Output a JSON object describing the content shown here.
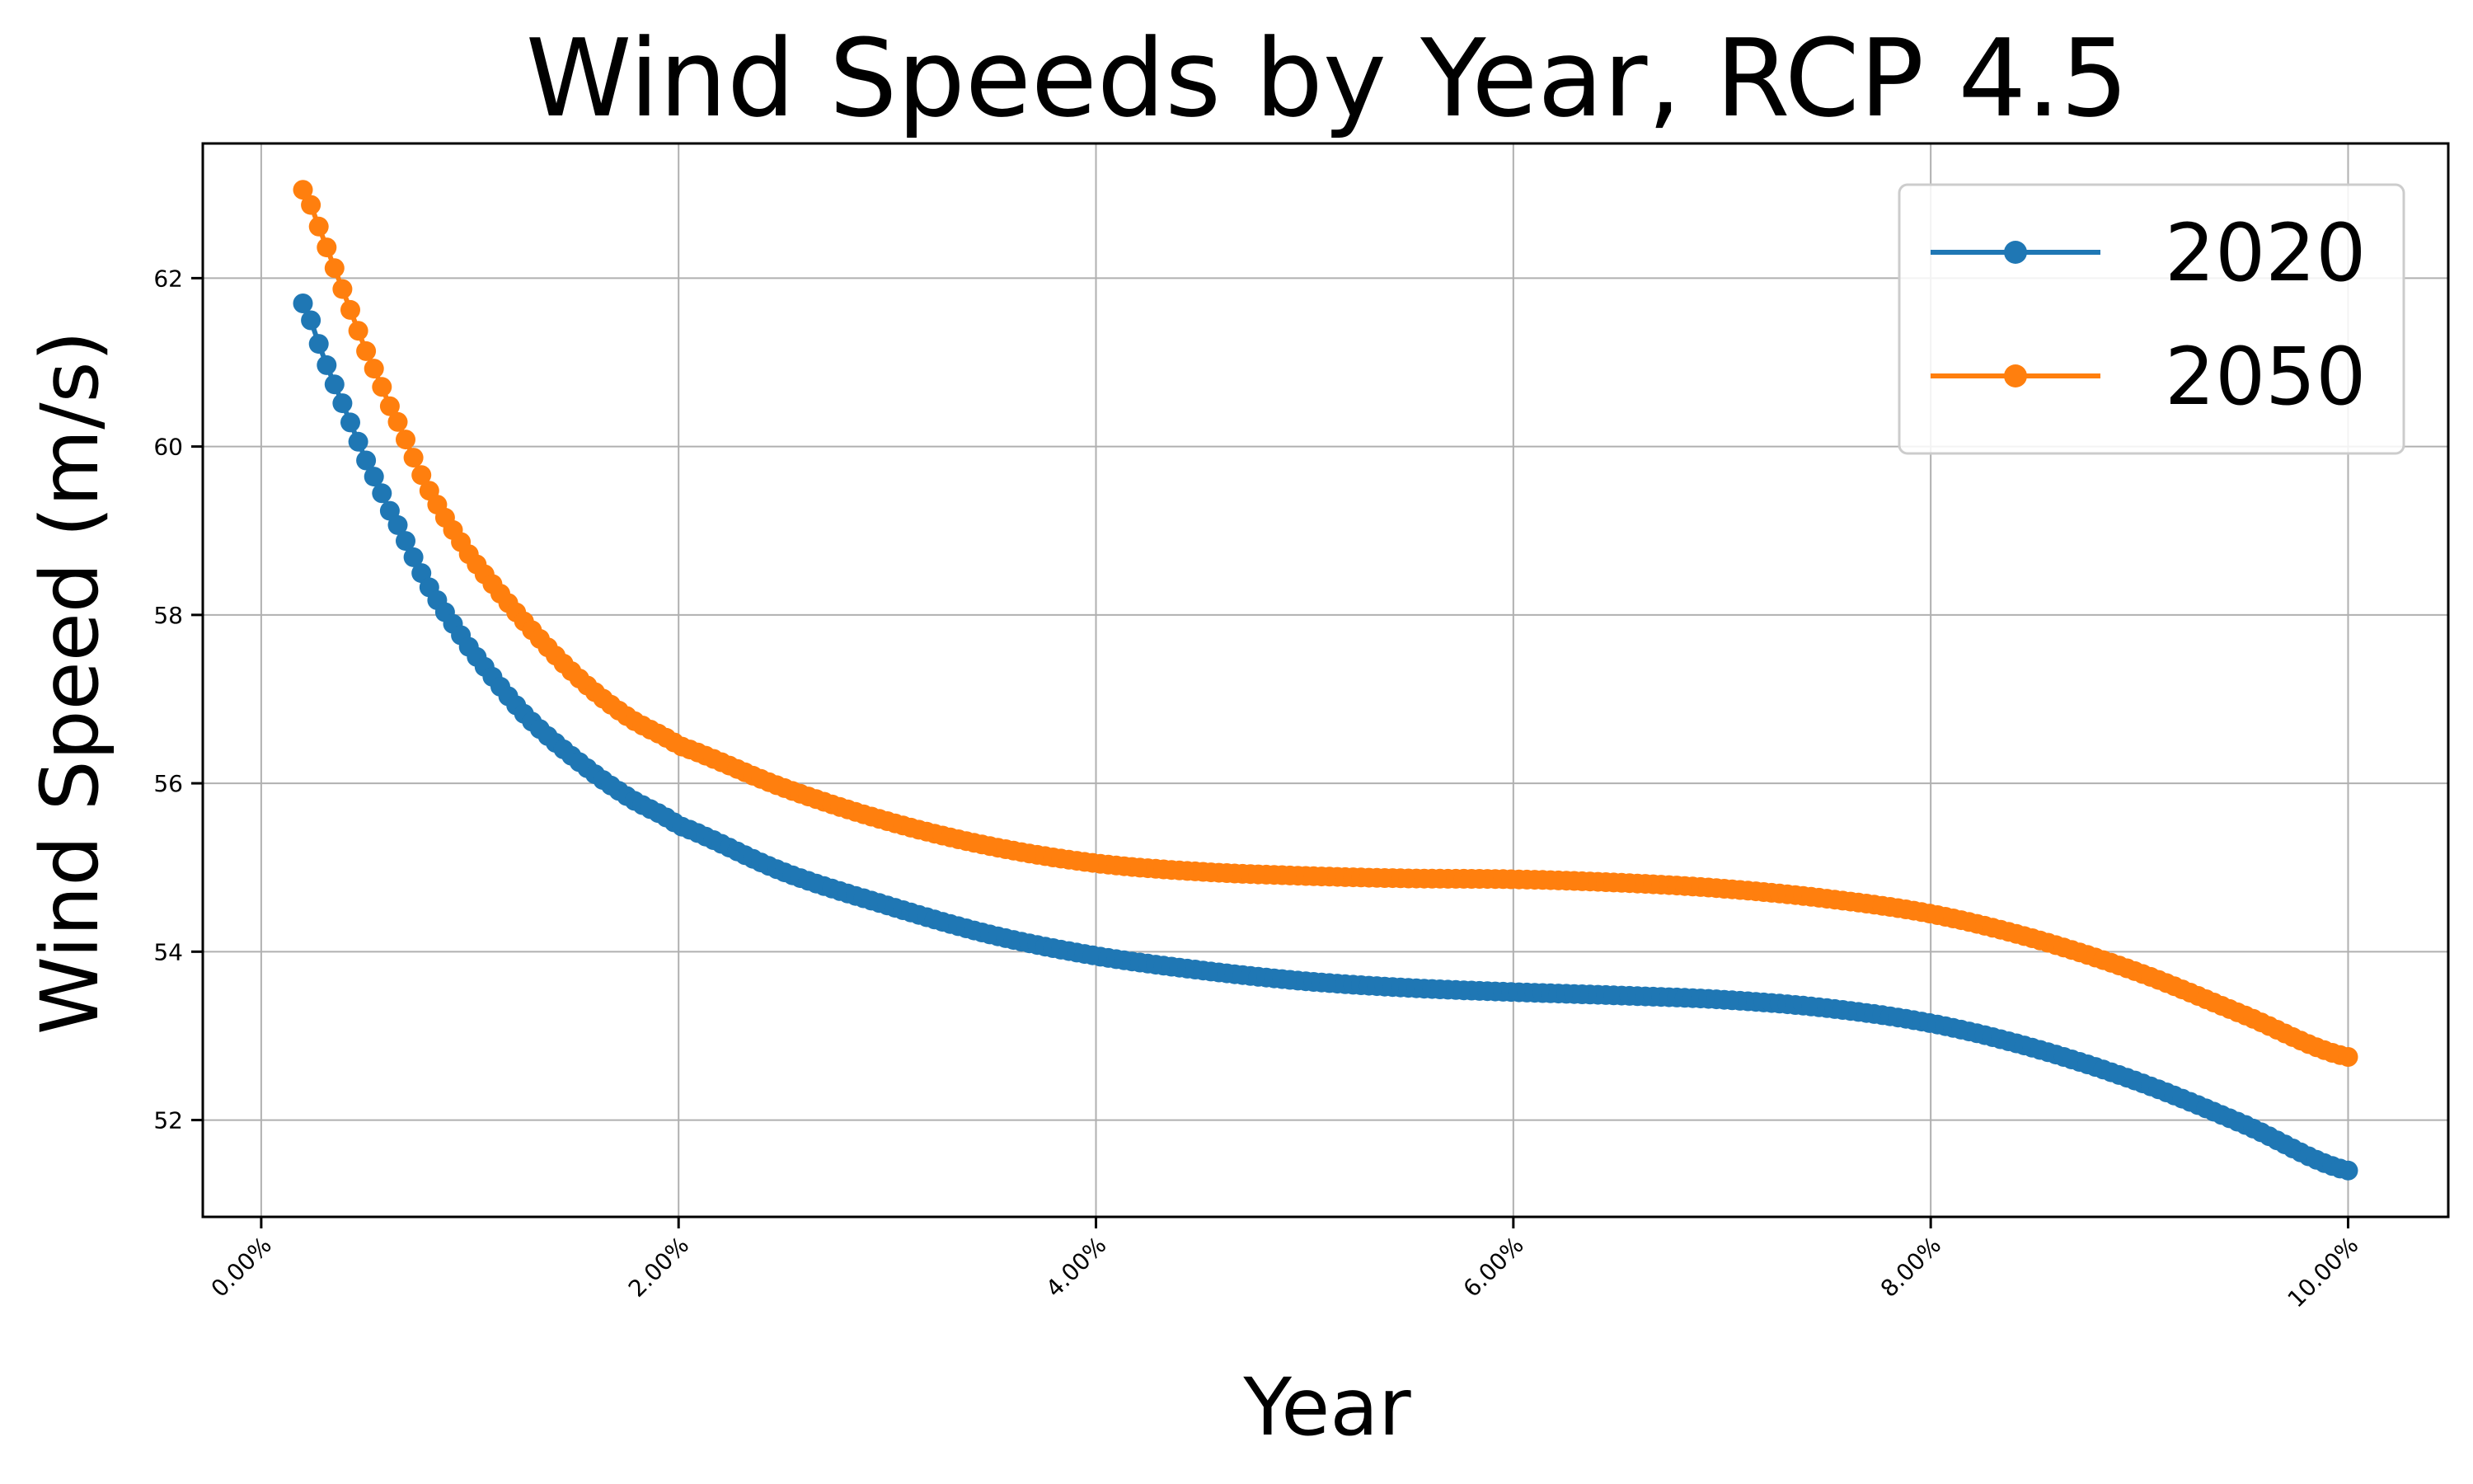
{
  "chart_data": {
    "type": "line",
    "title": "Wind Speeds by Year, RCP 4.5",
    "xlabel": "Year",
    "ylabel": "Wind Speed (m/s)",
    "x_tick_labels": [
      "0.00%",
      "2.00%",
      "4.00%",
      "6.00%",
      "8.00%",
      "10.00%"
    ],
    "x_ticks": [
      0,
      0.02,
      0.04,
      0.06,
      0.08,
      0.1
    ],
    "y_tick_labels": [
      "52",
      "54",
      "56",
      "58",
      "60",
      "62"
    ],
    "y_ticks": [
      52,
      54,
      56,
      58,
      60,
      62
    ],
    "xlim": [
      -0.0028,
      0.1048
    ],
    "ylim": [
      50.85,
      63.6
    ],
    "grid": true,
    "legend_position": "upper right",
    "x": [
      0.002,
      0.003,
      0.004,
      0.005,
      0.006,
      0.008,
      0.01,
      0.0125,
      0.015,
      0.0175,
      0.02,
      0.025,
      0.03,
      0.035,
      0.04,
      0.045,
      0.05,
      0.055,
      0.06,
      0.065,
      0.07,
      0.075,
      0.08,
      0.085,
      0.09,
      0.095,
      0.1
    ],
    "series": [
      {
        "name": "2020",
        "color": "#1f77b4",
        "values": [
          61.7,
          61.05,
          60.45,
          59.85,
          59.3,
          58.35,
          57.6,
          56.85,
          56.3,
          55.85,
          55.5,
          54.95,
          54.55,
          54.2,
          53.95,
          53.78,
          53.65,
          53.57,
          53.52,
          53.48,
          53.43,
          53.33,
          53.15,
          52.85,
          52.45,
          51.95,
          51.4
        ]
      },
      {
        "name": "2050",
        "color": "#ff7f0e",
        "values": [
          63.05,
          62.45,
          61.8,
          61.15,
          60.55,
          59.5,
          58.7,
          57.95,
          57.3,
          56.8,
          56.45,
          55.95,
          55.55,
          55.25,
          55.05,
          54.95,
          54.9,
          54.87,
          54.86,
          54.82,
          54.75,
          54.63,
          54.45,
          54.15,
          53.75,
          53.25,
          52.75
        ]
      }
    ]
  }
}
